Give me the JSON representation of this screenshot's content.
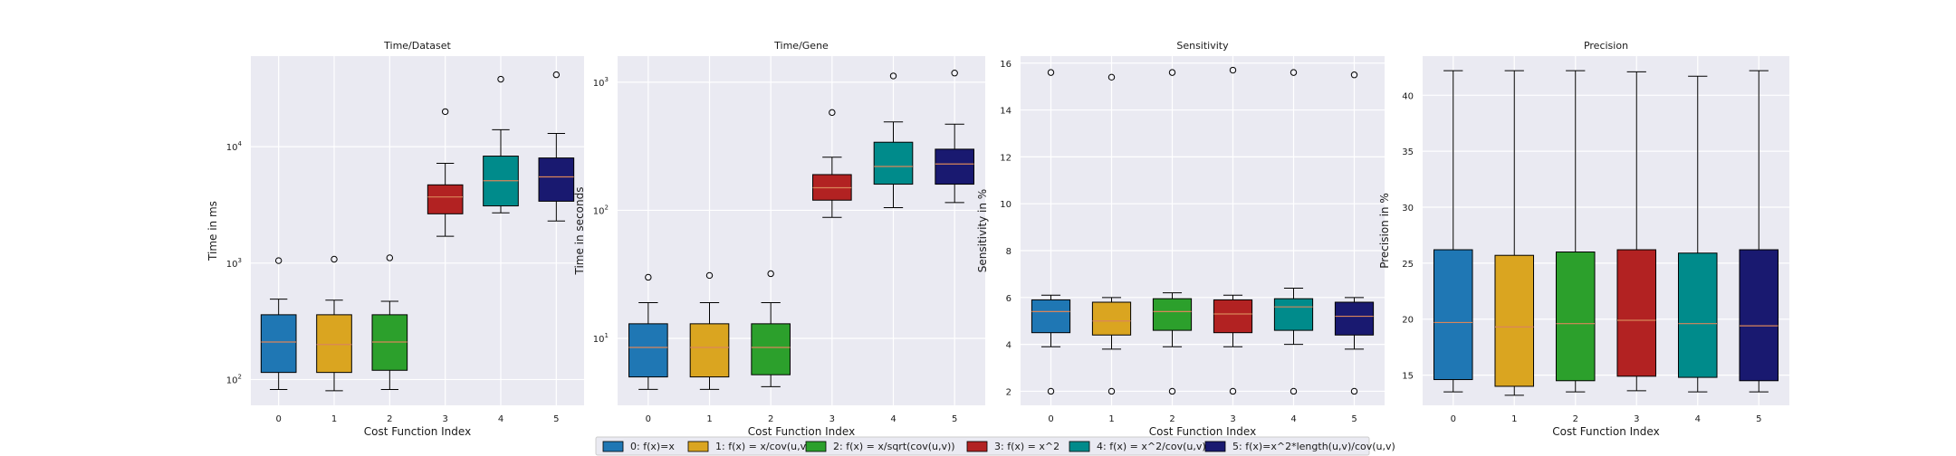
{
  "legend": {
    "entries": [
      {
        "label": "0: f(x)=x",
        "color": "#1f77b4"
      },
      {
        "label": "1: f(x) = x/cov(u,v)",
        "color": "#daa520"
      },
      {
        "label": "2: f(x) = x/sqrt(cov(u,v))",
        "color": "#2ca02c"
      },
      {
        "label": "3: f(x) = x^2",
        "color": "#b22222"
      },
      {
        "label": "4: f(x) = x^2/cov(u,v)",
        "color": "#008b8b"
      },
      {
        "label": "5: f(x)=x^2*length(u,v)/cov(u,v)",
        "color": "#191970"
      }
    ],
    "placement": "bottom-center"
  },
  "colors": {
    "axes_bg": "#eaeaf2",
    "grid": "#ffffff",
    "median": "#d9865a"
  },
  "chart_data": [
    {
      "type": "box",
      "title": "Time/Dataset",
      "xlabel": "Cost Function Index",
      "ylabel": "Time in ms",
      "yscale": "log",
      "ylim": [
        60,
        60000
      ],
      "yticks": [
        {
          "value": 100,
          "base": "10",
          "exp": "2"
        },
        {
          "value": 1000,
          "base": "10",
          "exp": "3"
        },
        {
          "value": 10000,
          "base": "10",
          "exp": "4"
        }
      ],
      "categories": [
        "0",
        "1",
        "2",
        "3",
        "4",
        "5"
      ],
      "grid": true,
      "boxes": [
        {
          "whislo": 82,
          "q1": 115,
          "med": 210,
          "q3": 360,
          "whishi": 490,
          "fliers": [
            1050
          ]
        },
        {
          "whislo": 80,
          "q1": 115,
          "med": 200,
          "q3": 360,
          "whishi": 480,
          "fliers": [
            1080
          ]
        },
        {
          "whislo": 82,
          "q1": 120,
          "med": 210,
          "q3": 360,
          "whishi": 470,
          "fliers": [
            1110
          ]
        },
        {
          "whislo": 1700,
          "q1": 2650,
          "med": 3700,
          "q3": 4700,
          "whishi": 7200,
          "fliers": [
            20000
          ]
        },
        {
          "whislo": 2700,
          "q1": 3100,
          "med": 5100,
          "q3": 8300,
          "whishi": 14000,
          "fliers": [
            38000
          ]
        },
        {
          "whislo": 2300,
          "q1": 3400,
          "med": 5500,
          "q3": 8000,
          "whishi": 13000,
          "fliers": [
            41500
          ]
        }
      ]
    },
    {
      "type": "box",
      "title": "Time/Gene",
      "xlabel": "Cost Function Index",
      "ylabel": "Time in seconds",
      "yscale": "log",
      "ylim": [
        3,
        1600
      ],
      "yticks": [
        {
          "value": 10,
          "base": "10",
          "exp": "1"
        },
        {
          "value": 100,
          "base": "10",
          "exp": "2"
        },
        {
          "value": 1000,
          "base": "10",
          "exp": "3"
        }
      ],
      "categories": [
        "0",
        "1",
        "2",
        "3",
        "4",
        "5"
      ],
      "grid": true,
      "boxes": [
        {
          "whislo": 4,
          "q1": 5,
          "med": 8.5,
          "q3": 13,
          "whishi": 19,
          "fliers": [
            30
          ]
        },
        {
          "whislo": 4,
          "q1": 5,
          "med": 8.5,
          "q3": 13,
          "whishi": 19,
          "fliers": [
            31
          ]
        },
        {
          "whislo": 4.2,
          "q1": 5.2,
          "med": 8.5,
          "q3": 13,
          "whishi": 19,
          "fliers": [
            32
          ]
        },
        {
          "whislo": 88,
          "q1": 120,
          "med": 150,
          "q3": 190,
          "whishi": 260,
          "fliers": [
            580
          ]
        },
        {
          "whislo": 105,
          "q1": 160,
          "med": 220,
          "q3": 340,
          "whishi": 490,
          "fliers": [
            1120
          ]
        },
        {
          "whislo": 115,
          "q1": 160,
          "med": 230,
          "q3": 300,
          "whishi": 470,
          "fliers": [
            1180
          ]
        }
      ]
    },
    {
      "type": "box",
      "title": "Sensitivity",
      "xlabel": "Cost Function Index",
      "ylabel": "Sensitivity in %",
      "yscale": "linear",
      "ylim": [
        1.4,
        16.3
      ],
      "yticks": [
        {
          "value": 2,
          "label": "2"
        },
        {
          "value": 4,
          "label": "4"
        },
        {
          "value": 6,
          "label": "6"
        },
        {
          "value": 8,
          "label": "8"
        },
        {
          "value": 10,
          "label": "10"
        },
        {
          "value": 12,
          "label": "12"
        },
        {
          "value": 14,
          "label": "14"
        },
        {
          "value": 16,
          "label": "16"
        }
      ],
      "categories": [
        "0",
        "1",
        "2",
        "3",
        "4",
        "5"
      ],
      "grid": true,
      "boxes": [
        {
          "whislo": 3.9,
          "q1": 4.5,
          "med": 5.4,
          "q3": 5.9,
          "whishi": 6.1,
          "fliers": [
            2.0,
            15.6
          ]
        },
        {
          "whislo": 3.8,
          "q1": 4.4,
          "med": 5.0,
          "q3": 5.8,
          "whishi": 6.0,
          "fliers": [
            2.0,
            15.4
          ]
        },
        {
          "whislo": 3.9,
          "q1": 4.6,
          "med": 5.4,
          "q3": 5.95,
          "whishi": 6.2,
          "fliers": [
            2.0,
            15.6
          ]
        },
        {
          "whislo": 3.9,
          "q1": 4.5,
          "med": 5.3,
          "q3": 5.9,
          "whishi": 6.1,
          "fliers": [
            2.0,
            15.7
          ]
        },
        {
          "whislo": 4.0,
          "q1": 4.6,
          "med": 5.6,
          "q3": 5.95,
          "whishi": 6.4,
          "fliers": [
            2.0,
            15.6
          ]
        },
        {
          "whislo": 3.8,
          "q1": 4.4,
          "med": 5.2,
          "q3": 5.8,
          "whishi": 6.0,
          "fliers": [
            2.0,
            15.5
          ]
        }
      ]
    },
    {
      "type": "box",
      "title": "Precision",
      "xlabel": "Cost Function Index",
      "ylabel": "Precision in %",
      "yscale": "linear",
      "ylim": [
        12.3,
        43.5
      ],
      "yticks": [
        {
          "value": 15,
          "label": "15"
        },
        {
          "value": 20,
          "label": "20"
        },
        {
          "value": 25,
          "label": "25"
        },
        {
          "value": 30,
          "label": "30"
        },
        {
          "value": 35,
          "label": "35"
        },
        {
          "value": 40,
          "label": "40"
        }
      ],
      "categories": [
        "0",
        "1",
        "2",
        "3",
        "4",
        "5"
      ],
      "grid": true,
      "boxes": [
        {
          "whislo": 13.5,
          "q1": 14.6,
          "med": 19.7,
          "q3": 26.2,
          "whishi": 42.2,
          "fliers": []
        },
        {
          "whislo": 13.2,
          "q1": 14.0,
          "med": 19.3,
          "q3": 25.7,
          "whishi": 42.2,
          "fliers": []
        },
        {
          "whislo": 13.5,
          "q1": 14.5,
          "med": 19.6,
          "q3": 26.0,
          "whishi": 42.2,
          "fliers": []
        },
        {
          "whislo": 13.6,
          "q1": 14.9,
          "med": 19.9,
          "q3": 26.2,
          "whishi": 42.1,
          "fliers": []
        },
        {
          "whislo": 13.5,
          "q1": 14.8,
          "med": 19.6,
          "q3": 25.9,
          "whishi": 41.7,
          "fliers": []
        },
        {
          "whislo": 13.5,
          "q1": 14.5,
          "med": 19.4,
          "q3": 26.2,
          "whishi": 42.2,
          "fliers": []
        }
      ]
    }
  ]
}
